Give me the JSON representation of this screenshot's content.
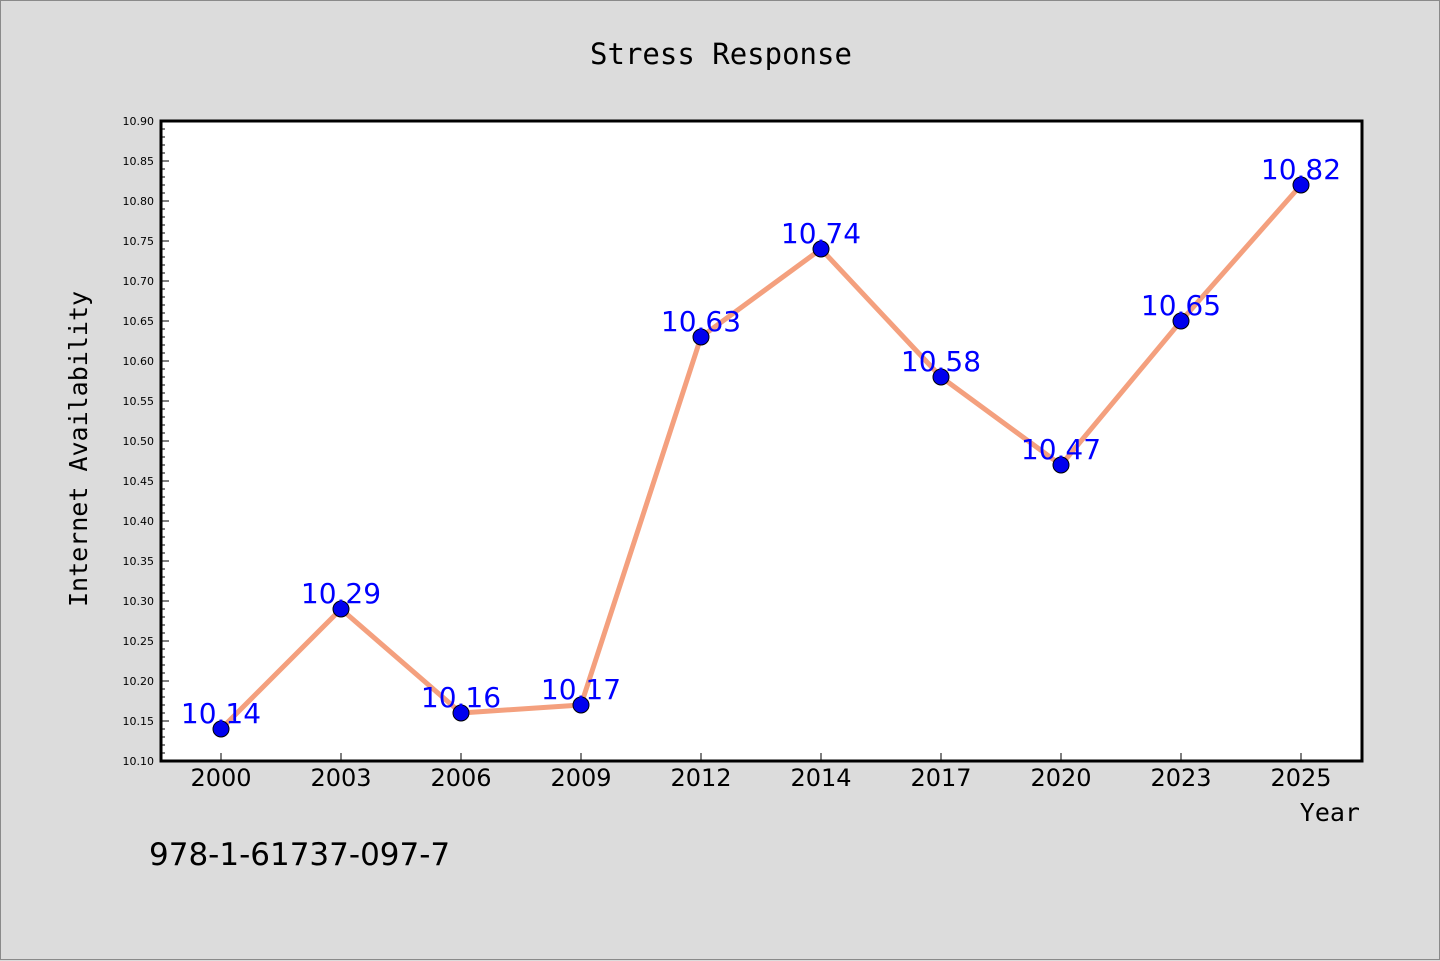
{
  "chart_data": {
    "type": "line",
    "title": "Stress Response",
    "xlabel": "Year",
    "ylabel": "Internet Availability",
    "categories": [
      "2000",
      "2003",
      "2006",
      "2009",
      "2012",
      "2014",
      "2017",
      "2020",
      "2023",
      "2025"
    ],
    "series": [
      {
        "values": [
          10.14,
          10.29,
          10.16,
          10.17,
          10.63,
          10.74,
          10.58,
          10.47,
          10.65,
          10.82
        ],
        "labels": [
          "10.14",
          "10.29",
          "10.16",
          "10.17",
          "10.63",
          "10.74",
          "10.58",
          "10.47",
          "10.65",
          "10.82"
        ],
        "line_color": "#f4a07e",
        "marker_color": "#0000ee",
        "label_color": "#0000ff"
      }
    ],
    "ylim": [
      10.1,
      10.9
    ],
    "yticks": [
      "10.10",
      "10.15",
      "10.20",
      "10.25",
      "10.30",
      "10.35",
      "10.40",
      "10.45",
      "10.50",
      "10.55",
      "10.60",
      "10.65",
      "10.70",
      "10.75",
      "10.80",
      "10.85",
      "10.90"
    ],
    "grid": false,
    "legend": "none"
  },
  "annotation": "978-1-61737-097-7",
  "colors": {
    "background": "#dcdcdc",
    "plot_background": "#ffffff",
    "axis": "#000000"
  }
}
